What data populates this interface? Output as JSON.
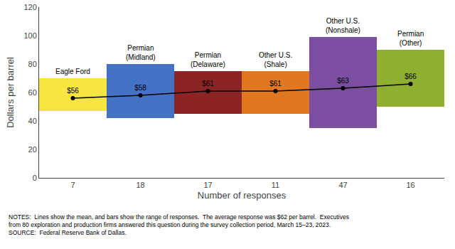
{
  "chart_data": {
    "type": "bar",
    "categories": [
      "7",
      "18",
      "17",
      "11",
      "47",
      "16"
    ],
    "annotations": [
      "Eagle Ford",
      "Permian\n(Midland)",
      "Permian\n(Delaware)",
      "Other U.S.\n(Shale)",
      "Other U.S.\n(Nonshale)",
      "Permian\n(Other)"
    ],
    "series": [
      {
        "type": "bar",
        "bases": [
          47,
          42,
          45,
          45,
          35,
          50
        ],
        "values": [
          70,
          80,
          75,
          75,
          99,
          90
        ],
        "colors": [
          "#F5E642",
          "#4472C4",
          "#8B2525",
          "#E07820",
          "#7B4FA0",
          "#8FAF30"
        ]
      },
      {
        "type": "line",
        "values": [
          56,
          58,
          61,
          61,
          63,
          66
        ],
        "value_labels": [
          "$56",
          "$58",
          "$61",
          "$61",
          "$63",
          "$66"
        ],
        "data_labels": true,
        "color": "#000000",
        "marker": "circle"
      }
    ],
    "ylabel": "Dollars per barrel",
    "xlabel": "Number of responses",
    "ylim": [
      0,
      120
    ],
    "yticks": [
      0,
      20,
      40,
      60,
      80,
      100,
      120
    ],
    "grid": false,
    "notes": "NOTES:  Lines show the mean, and bars show the range of responses.  The average response was $62 per barrel.  Executives\nfrom 80 exploration and production firms answered this question during the survey collection period, March 15–23, 2023.\nSOURCE:  Federal Reserve Bank of Dallas."
  }
}
